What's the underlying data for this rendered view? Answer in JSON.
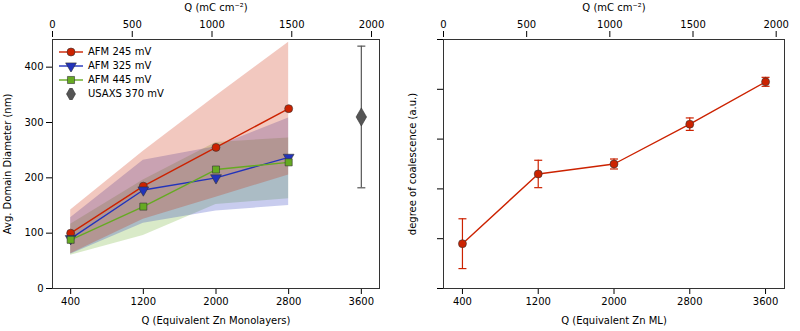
{
  "chart_data": [
    {
      "type": "line",
      "x_label": "Q (Equivalent Zn Monolayers)",
      "x2_label": "Q (mC cm⁻²)",
      "y_label": "Avg. Domain Diameter (nm)",
      "xlim": [
        200,
        3800
      ],
      "xticks": [
        400,
        1200,
        2000,
        2800,
        3600
      ],
      "x2lim": [
        0,
        2050
      ],
      "x2ticks": [
        0,
        500,
        1000,
        1500,
        2000
      ],
      "ylim": [
        0,
        450
      ],
      "yticks": [
        0,
        100,
        200,
        300,
        400
      ],
      "legend": "upper left",
      "series": [
        {
          "name": "AFM 245 mV",
          "color": "#cc2200",
          "marker": "circle",
          "x": [
            400,
            1200,
            2000,
            2800
          ],
          "values": [
            100,
            185,
            255,
            325
          ],
          "band_lower": [
            63,
            125,
            165,
            205
          ],
          "band_upper": [
            142,
            248,
            348,
            445
          ]
        },
        {
          "name": "AFM 325 mV",
          "color": "#2233bb",
          "marker": "triangle_down",
          "x": [
            400,
            1200,
            2000,
            2800
          ],
          "values": [
            90,
            178,
            200,
            237
          ],
          "band_lower": [
            62,
            118,
            140,
            150
          ],
          "band_upper": [
            128,
            232,
            256,
            308
          ]
        },
        {
          "name": "AFM 445 mV",
          "color": "#66aa22",
          "marker": "square",
          "x": [
            400,
            1200,
            2000,
            2800
          ],
          "values": [
            88,
            148,
            215,
            228
          ],
          "band_lower": [
            60,
            96,
            152,
            162
          ],
          "band_upper": [
            116,
            196,
            264,
            272
          ]
        },
        {
          "name": "USAXS 370 mV",
          "type": "scatter",
          "color": "#555555",
          "marker": "diamond",
          "x": [
            3600
          ],
          "values": [
            310
          ],
          "error": [
            128
          ]
        }
      ]
    },
    {
      "type": "line",
      "x_label": "Q (Equivalent Zn ML)",
      "x2_label": "Q (mC cm⁻²)",
      "y_label": "degree of coalescence (a.u.)",
      "xlim": [
        200,
        3800
      ],
      "xticks": [
        400,
        1200,
        2000,
        2800,
        3600
      ],
      "x2lim": [
        0,
        2050
      ],
      "x2ticks": [
        0,
        500,
        1000,
        1500,
        2000
      ],
      "ylim": [
        0,
        1
      ],
      "yticks": [
        0,
        0.2,
        0.4,
        0.6,
        0.8,
        1
      ],
      "tick_labels": "x",
      "color": "#cc2200",
      "marker": "circle",
      "x": [
        400,
        1200,
        2000,
        2800,
        3600
      ],
      "values": [
        0.18,
        0.46,
        0.5,
        0.66,
        0.83
      ],
      "error": [
        0.1,
        0.055,
        0.02,
        0.025,
        0.018
      ]
    }
  ]
}
